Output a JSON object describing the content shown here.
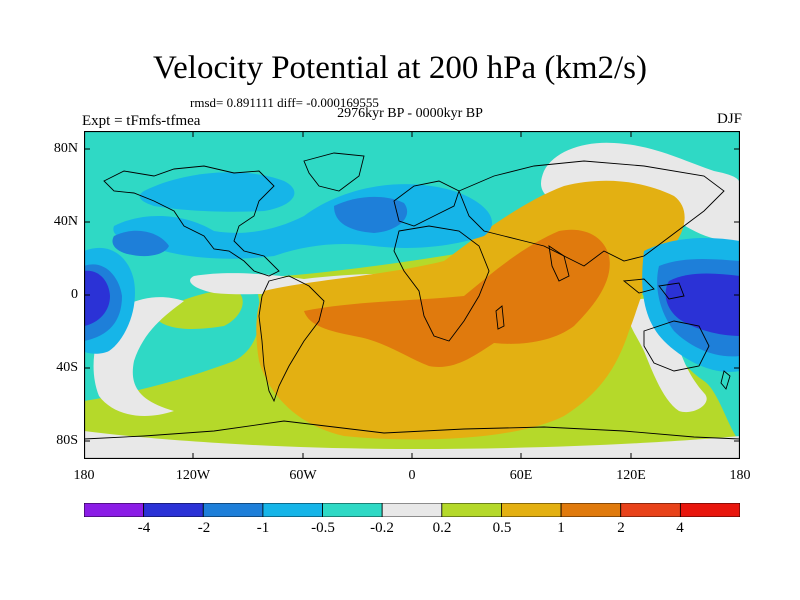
{
  "title": "Velocity Potential at 200 hPa (km2/s)",
  "stats": "rmsd= 0.891111 diff= -0.000169555",
  "period": "2976kyr BP - 0000kyr BP",
  "experiment": "Expt = tFmfs-tfmea",
  "season": "DJF",
  "lat_ticks": [
    "80N",
    "40N",
    "0",
    "40S",
    "80S"
  ],
  "lon_ticks": [
    "180",
    "120W",
    "60W",
    "0",
    "60E",
    "120E",
    "180"
  ],
  "colorbar": {
    "labels": [
      "-4",
      "-2",
      "-1",
      "-0.5",
      "-0.2",
      "0.2",
      "0.5",
      "1",
      "2",
      "4"
    ],
    "colors": [
      "#8b1ce6",
      "#2b32d6",
      "#1e7fd9",
      "#16b5e8",
      "#2fd9c5",
      "#e8e8e8",
      "#b5d92a",
      "#e3b012",
      "#e07a0d",
      "#e8421a",
      "#e8160d"
    ]
  }
}
